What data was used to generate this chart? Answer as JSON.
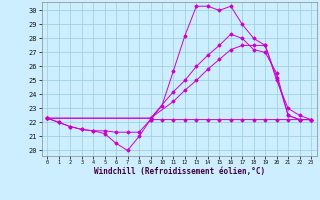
{
  "xlabel": "Windchill (Refroidissement éolien,°C)",
  "bg_color": "#cceeff",
  "grid_color": "#99ccdd",
  "line_color": "#cc00cc",
  "xlim": [
    -0.5,
    23.5
  ],
  "ylim": [
    19.6,
    30.6
  ],
  "yticks": [
    20,
    21,
    22,
    23,
    24,
    25,
    26,
    27,
    28,
    29,
    30
  ],
  "xticks": [
    0,
    1,
    2,
    3,
    4,
    5,
    6,
    7,
    8,
    9,
    10,
    11,
    12,
    13,
    14,
    15,
    16,
    17,
    18,
    19,
    20,
    21,
    22,
    23
  ],
  "series": [
    {
      "x": [
        0,
        1,
        2,
        3,
        4,
        5,
        6,
        7,
        8,
        9,
        10,
        11,
        12,
        13,
        14,
        15,
        16,
        17,
        18,
        19,
        20,
        21,
        22,
        23
      ],
      "y": [
        22.3,
        22.0,
        21.7,
        21.5,
        21.4,
        21.4,
        21.3,
        21.3,
        21.3,
        22.2,
        22.2,
        22.2,
        22.2,
        22.2,
        22.2,
        22.2,
        22.2,
        22.2,
        22.2,
        22.2,
        22.2,
        22.2,
        22.2,
        22.2
      ]
    },
    {
      "x": [
        0,
        1,
        2,
        3,
        4,
        5,
        6,
        7,
        8,
        9,
        10,
        11,
        12,
        13,
        14,
        15,
        16,
        17,
        18,
        19,
        20,
        21,
        22,
        23
      ],
      "y": [
        22.3,
        22.0,
        21.7,
        21.5,
        21.4,
        21.2,
        20.5,
        20.0,
        21.0,
        22.2,
        23.2,
        25.7,
        28.2,
        30.3,
        30.3,
        30.0,
        30.3,
        29.0,
        28.0,
        27.5,
        25.0,
        23.0,
        22.5,
        22.2
      ]
    },
    {
      "x": [
        0,
        9,
        11,
        12,
        13,
        14,
        15,
        16,
        17,
        18,
        19,
        20,
        21,
        22,
        23
      ],
      "y": [
        22.3,
        22.3,
        23.5,
        24.3,
        25.0,
        25.8,
        26.5,
        27.2,
        27.5,
        27.5,
        27.5,
        25.2,
        22.5,
        22.2,
        22.2
      ]
    },
    {
      "x": [
        0,
        9,
        11,
        12,
        13,
        14,
        15,
        16,
        17,
        18,
        19,
        20,
        21,
        22,
        23
      ],
      "y": [
        22.3,
        22.3,
        24.2,
        25.0,
        26.0,
        26.8,
        27.5,
        28.3,
        28.0,
        27.2,
        27.0,
        25.5,
        22.5,
        22.2,
        22.2
      ]
    }
  ]
}
